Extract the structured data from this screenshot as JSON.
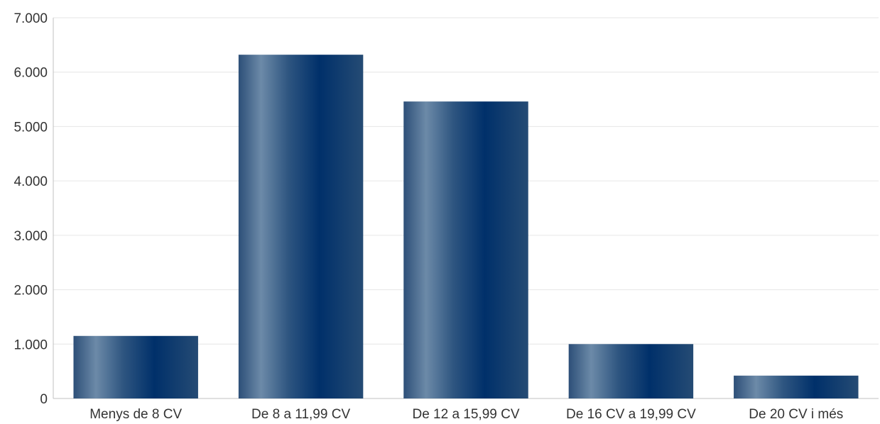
{
  "chart_data": {
    "type": "bar",
    "title": "",
    "xlabel": "",
    "ylabel": "",
    "categories": [
      "Menys de 8 CV",
      "De 8 a 11,99 CV",
      "De 12 a 15,99 CV",
      "De 16 CV a 19,99 CV",
      "De 20 CV i més"
    ],
    "values": [
      1150,
      6320,
      5460,
      1000,
      420
    ],
    "ylim": [
      0,
      7000
    ],
    "yticks": [
      0,
      1000,
      2000,
      3000,
      4000,
      5000,
      6000,
      7000
    ],
    "ytick_labels": [
      "0",
      "1.000",
      "2.000",
      "3.000",
      "4.000",
      "5.000",
      "6.000",
      "7.000"
    ],
    "grid": true,
    "legend": "none",
    "colors": {
      "bar_dark": "#00306a",
      "bar_light": "#6c8aa8",
      "grid": "#e6e6e6",
      "axis": "#c0c0c0"
    }
  }
}
